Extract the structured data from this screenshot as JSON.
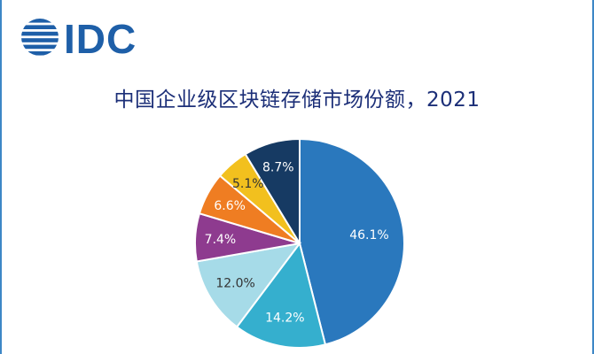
{
  "logo": {
    "text": "IDC",
    "icon": "globe-stripes-icon",
    "color": "#1e5fa8"
  },
  "chart_data": {
    "type": "pie",
    "title": "中国企业级区块链存储市场份额，2021",
    "slices": [
      {
        "label": "46.1%",
        "value": 46.1,
        "color": "#2a78bd"
      },
      {
        "label": "14.2%",
        "value": 14.2,
        "color": "#35afce"
      },
      {
        "label": "12.0%",
        "value": 12.0,
        "color": "#a6dbe8"
      },
      {
        "label": "7.4%",
        "value": 7.4,
        "color": "#8e3b8f"
      },
      {
        "label": "6.6%",
        "value": 6.6,
        "color": "#ef7d22"
      },
      {
        "label": "5.1%",
        "value": 5.1,
        "color": "#f2c01e"
      },
      {
        "label": "8.7%",
        "value": 8.7,
        "color": "#163a63"
      }
    ],
    "start_angle": "12 o'clock",
    "direction": "clockwise",
    "legend": "none"
  }
}
